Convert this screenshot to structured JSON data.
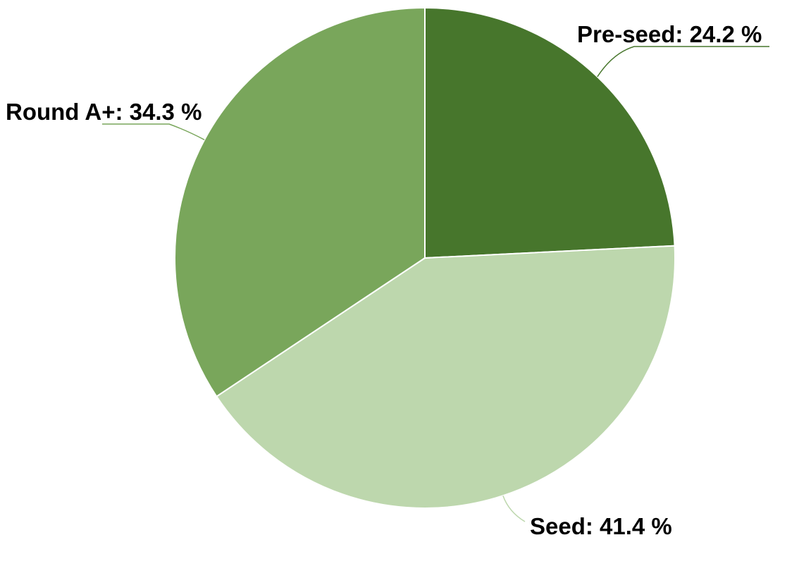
{
  "chart_data": {
    "type": "pie",
    "title": "",
    "start_angle_deg": 0,
    "direction": "clockwise",
    "slices": [
      {
        "name": "Pre-seed",
        "value": 24.2,
        "label": "Pre-seed: 24.2 %",
        "color": "#47762c"
      },
      {
        "name": "Seed",
        "value": 41.4,
        "label": "Seed: 41.4 %",
        "color": "#bdd7ad"
      },
      {
        "name": "Round A+",
        "value": 34.3,
        "label": "Round A+: 34.3 %",
        "color": "#79a65b"
      }
    ]
  }
}
